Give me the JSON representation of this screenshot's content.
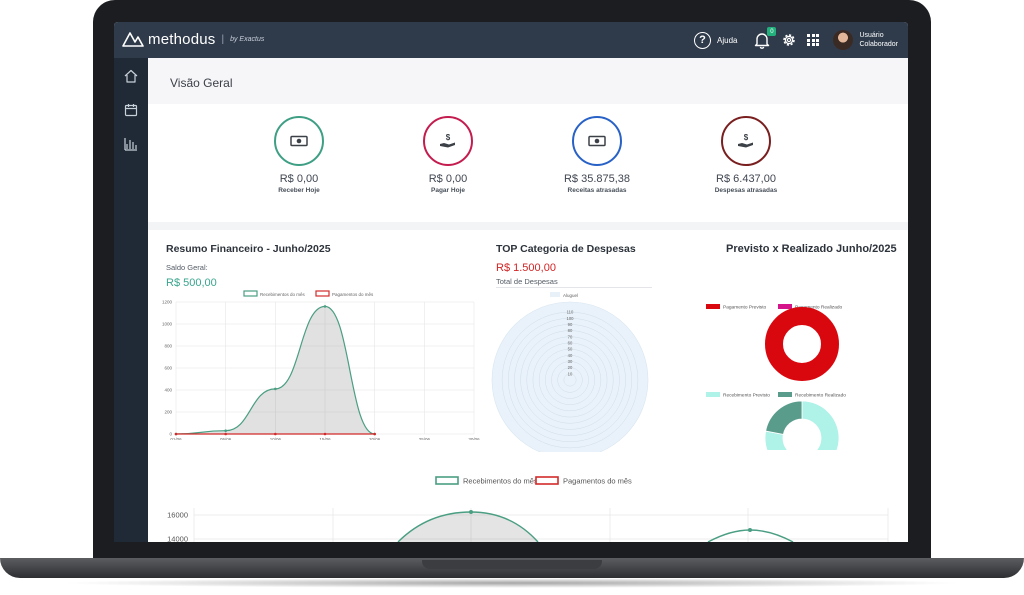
{
  "app": {
    "brand": "methodus",
    "brand_by": "by Exactus",
    "help_label": "Ajuda",
    "notifications_count": "0",
    "user_name": "Usuário",
    "user_role": "Colaborador"
  },
  "page": {
    "title": "Visão Geral"
  },
  "kpis": [
    {
      "value": "R$ 0,00",
      "label": "Receber Hoje",
      "color": "#3f9f84",
      "icon": "cash-icon"
    },
    {
      "value": "R$ 0,00",
      "label": "Pagar Hoje",
      "color": "#c41c4f",
      "icon": "hand-dollar-icon"
    },
    {
      "value": "R$ 35.875,38",
      "label": "Receitas atrasadas",
      "color": "#2962c7",
      "icon": "cash-icon"
    },
    {
      "value": "R$ 6.437,00",
      "label": "Despesas atrasadas",
      "color": "#7a1f1f",
      "icon": "hand-dollar-icon"
    }
  ],
  "resumo": {
    "title": "Resumo Financeiro - Junho/2025",
    "saldo_label": "Saldo Geral:",
    "saldo_value": "R$ 500,00"
  },
  "top_categoria": {
    "title": "TOP Categoria de Despesas",
    "value": "R$ 1.500,00",
    "label": "Total de Despesas"
  },
  "previsto": {
    "title": "Previsto x Realizado Junho/2025"
  },
  "chart_data": [
    {
      "type": "area",
      "categories": [
        "01/06",
        "05/06",
        "10/06",
        "15/06",
        "20/06",
        "25/06",
        "30/06"
      ],
      "series": [
        {
          "name": "Recebimentos do mês",
          "values": [
            0,
            30,
            410,
            1160,
            0,
            null,
            null
          ],
          "color": "#4a9e83"
        },
        {
          "name": "Pagamentos do mês",
          "values": [
            0,
            0,
            0,
            0,
            0,
            null,
            null
          ],
          "color": "#d22b2b"
        }
      ],
      "y_ticks": [
        "0",
        "200",
        "400",
        "600",
        "800",
        "1000",
        "1200"
      ],
      "ylim": [
        0,
        1200
      ]
    },
    {
      "type": "radar",
      "series": [
        {
          "name": "Aluguel",
          "values": [
            0
          ]
        }
      ],
      "r_ticks": [
        "10",
        "20",
        "30",
        "40",
        "50",
        "60",
        "70",
        "80",
        "90",
        "100",
        "110"
      ]
    },
    {
      "type": "pie",
      "series": [
        {
          "name": "Pagamento Previsto",
          "value": 100,
          "color": "#d9080f"
        },
        {
          "name": "Pagamento Realizado",
          "value": 0,
          "color": "#d6148a"
        }
      ]
    },
    {
      "type": "pie",
      "series": [
        {
          "name": "Recebimento Previsto",
          "value": 78,
          "color": "#aef2e8"
        },
        {
          "name": "Recebimento Realizado",
          "value": 22,
          "color": "#5a9c8c"
        }
      ]
    },
    {
      "type": "line",
      "series": [
        {
          "name": "Recebimentos do mês",
          "color": "#4a9e83"
        },
        {
          "name": "Pagamentos do mês",
          "color": "#d22b2b"
        }
      ],
      "y_ticks": [
        "16000",
        "14000"
      ]
    }
  ]
}
